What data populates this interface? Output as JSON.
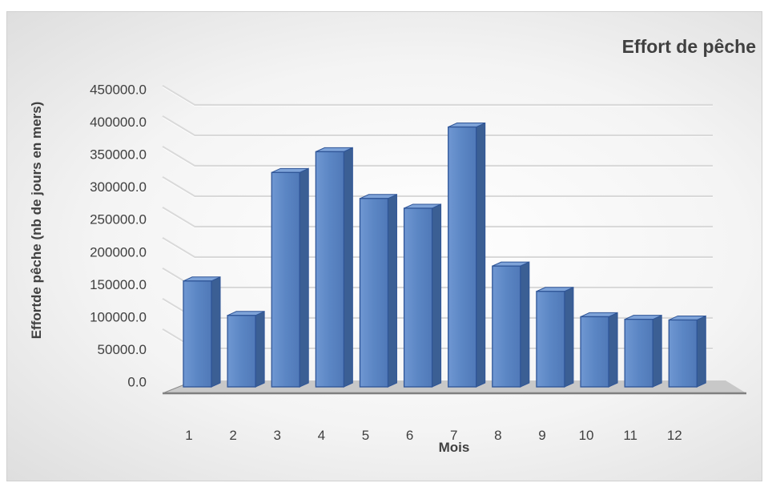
{
  "chart_data": {
    "type": "bar",
    "style": "3d-column",
    "title": "Effort de pêche",
    "xlabel": "Mois",
    "ylabel": "Effortde pêche (nb de jours en mers)",
    "categories": [
      "1",
      "2",
      "3",
      "4",
      "5",
      "6",
      "7",
      "8",
      "9",
      "10",
      "11",
      "12"
    ],
    "series": [
      {
        "name": "",
        "values": [
          163000,
          110000,
          330000,
          362000,
          290000,
          275000,
          400000,
          186000,
          147000,
          108000,
          104000,
          103000
        ]
      }
    ],
    "y_ticks": [
      "0.0",
      "50000.0",
      "100000.0",
      "150000.0",
      "200000.0",
      "250000.0",
      "300000.0",
      "350000.0",
      "400000.0",
      "450000.0"
    ],
    "ylim": [
      0,
      450000
    ],
    "grid": true,
    "legend": "none",
    "colors": {
      "bar_front": "#5b86c4",
      "bar_side": "#3b5f94",
      "bar_top": "#7ea3d8",
      "bar_edge": "#2f5597",
      "gridline": "#d9d9d9",
      "text": "#404040",
      "floor": "#a6a6a6"
    }
  }
}
